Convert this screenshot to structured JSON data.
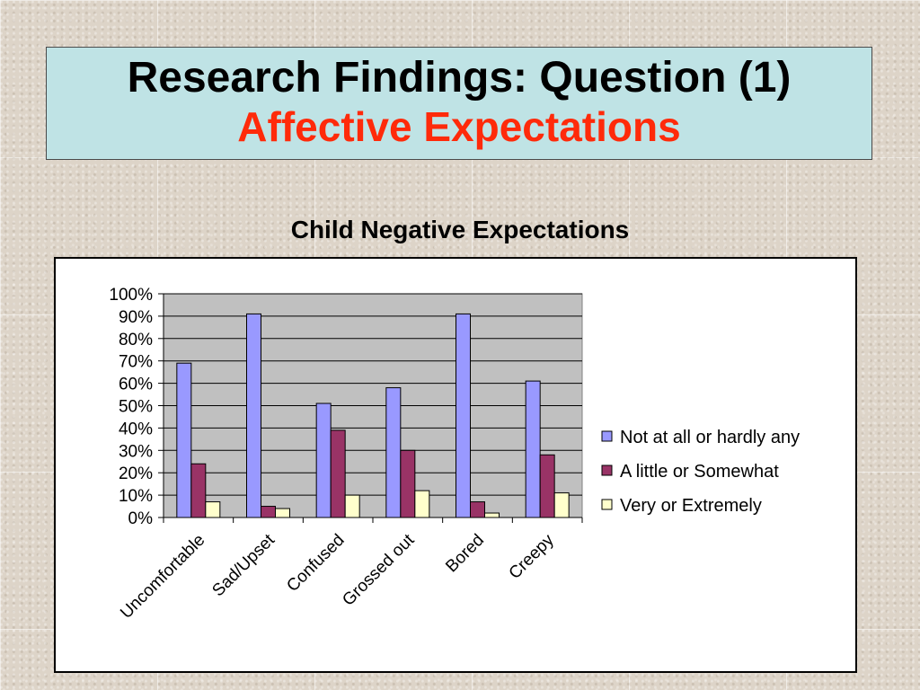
{
  "slide": {
    "title_line1": "Research Findings: Question (1)",
    "title_line2": "Affective Expectations"
  },
  "chart_data": {
    "type": "bar",
    "title": "Child Negative Expectations",
    "xlabel": "",
    "ylabel": "",
    "categories": [
      "Uncomfortable",
      "Sad/Upset",
      "Confused",
      "Grossed out",
      "Bored",
      "Creepy"
    ],
    "series": [
      {
        "name": "Not at all or hardly any",
        "color": "#9999ff",
        "values": [
          0.69,
          0.91,
          0.51,
          0.58,
          0.91,
          0.61
        ]
      },
      {
        "name": "A little or Somewhat",
        "color": "#993366",
        "values": [
          0.24,
          0.05,
          0.39,
          0.3,
          0.07,
          0.28
        ]
      },
      {
        "name": "Very or Extremely",
        "color": "#ffffcc",
        "values": [
          0.07,
          0.04,
          0.1,
          0.12,
          0.02,
          0.11
        ]
      }
    ],
    "ylim": [
      0,
      1
    ],
    "yticks": [
      "0%",
      "10%",
      "20%",
      "30%",
      "40%",
      "50%",
      "60%",
      "70%",
      "80%",
      "90%",
      "100%"
    ],
    "grid": true,
    "plot_background": "#c0c0c0",
    "legend": "right"
  }
}
